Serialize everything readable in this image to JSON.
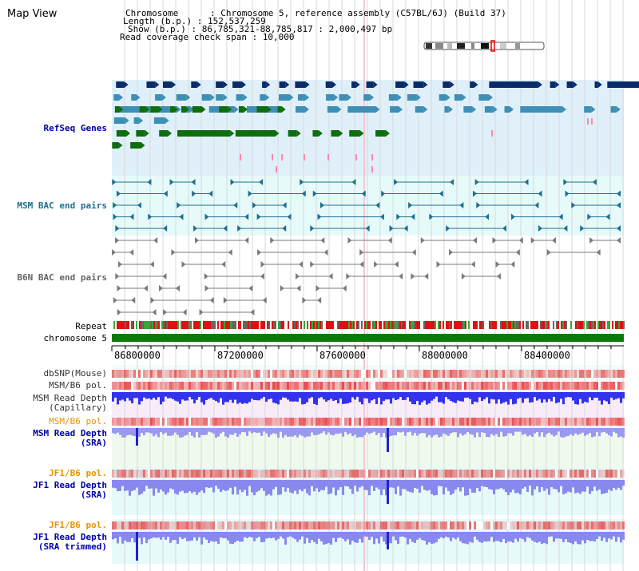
{
  "window_title": "Map View",
  "header": {
    "chromosome": "Chromosome      : Chromosome 5, reference assembly (C57BL/6J) (Build 37)",
    "length": "Length (b.p.) : 152,537,259",
    "show": "Show (b.p.) : 86,785,321-88,785,817 : 2,000,497 bp",
    "coverage": "Read coverage check span : 10,000"
  },
  "tracks": {
    "refseq": "RefSeq Genes",
    "msm_bac": "MSM BAC end pairs",
    "b6n_bac": "B6N BAC end pairs",
    "repeat": "Repeat",
    "chromosome": "chromosome 5",
    "dbsnp": "dbSNP(Mouse)",
    "msm_b6_pol_1": "MSM/B6 pol.",
    "msm_read_depth_cap_1": "MSM Read Depth",
    "msm_read_depth_cap_2": "(Capillary)",
    "msm_b6_pol_2": "MSM/B6 pol.",
    "msm_read_depth_sra_1": "MSM Read Depth",
    "msm_read_depth_sra_2": "(SRA)",
    "jf1_b6_pol_1": "JF1/B6 pol.",
    "jf1_read_depth_sra_1": "JF1 Read Depth",
    "jf1_read_depth_sra_2": "(SRA)",
    "jf1_b6_pol_2": "JF1/B6 pol.",
    "jf1_read_depth_trim_1": "JF1 Read Depth",
    "jf1_read_depth_trim_2": "(SRA trimmed)"
  },
  "axis_ticks": [
    "86800000",
    "87200000",
    "87600000",
    "88000000",
    "88400000"
  ],
  "colors": {
    "refseq_dark": "#0a2a6a",
    "refseq_mid": "#3d8fb5",
    "refseq_green": "#0d6e0d",
    "msm_bac": "#1f6f8f",
    "b6n_bac": "#7a7a7a",
    "chromosome": "#0a7a0a",
    "label_blue": "#0000aa",
    "label_teal": "#1f6f8f",
    "label_gray": "#666666",
    "label_orange": "#e69500"
  }
}
